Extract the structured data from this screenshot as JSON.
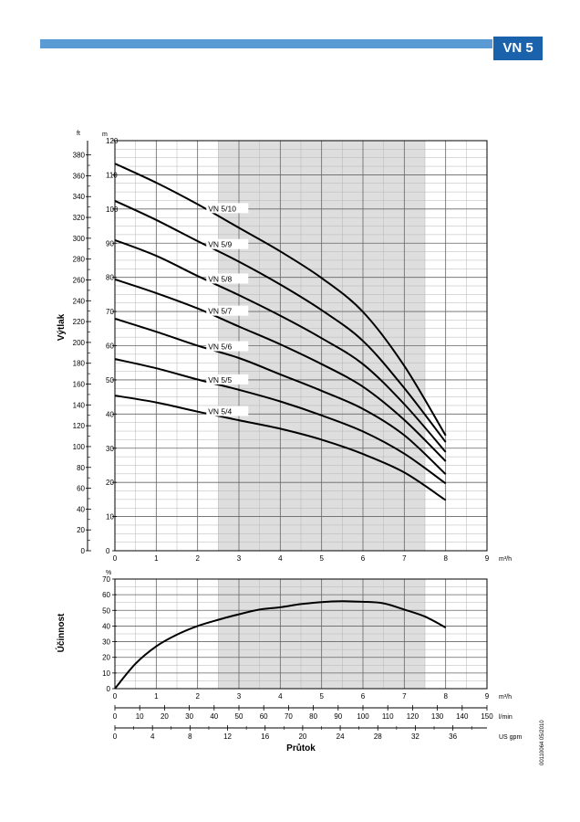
{
  "header": {
    "badge": "VN 5"
  },
  "footer_code": "00110064  05/2010",
  "colors": {
    "bar": "#5b9bd5",
    "badge": "#1b62ad",
    "shade": "#dedede",
    "curve": "#000000"
  },
  "chart_data": [
    {
      "type": "line",
      "ylabel": "Výtlak",
      "y_unit_m": "m",
      "y_unit_ft": "ft",
      "x_unit": "m³/h",
      "xlim": [
        0,
        9
      ],
      "ylim": [
        0,
        120
      ],
      "x_ticks": [
        0,
        1,
        2,
        3,
        4,
        5,
        6,
        7,
        8,
        9
      ],
      "y_ticks_m": [
        0,
        10,
        20,
        30,
        40,
        50,
        60,
        70,
        80,
        90,
        100,
        110,
        120
      ],
      "y_ticks_ft": [
        0,
        20,
        40,
        60,
        80,
        100,
        120,
        140,
        160,
        180,
        200,
        220,
        240,
        260,
        280,
        300,
        320,
        340,
        360,
        380
      ],
      "shaded_range": [
        2.5,
        7.5
      ],
      "grid": true,
      "series": [
        {
          "name": "VN 5/10",
          "x": [
            0,
            1,
            2,
            3,
            4,
            5,
            6,
            7,
            8
          ],
          "values": [
            113.3,
            107.7,
            101.4,
            94.5,
            87.6,
            79.8,
            69.9,
            54.1,
            33.7
          ],
          "label_x": 2.3
        },
        {
          "name": "VN 5/9",
          "x": [
            0,
            1,
            2,
            3,
            4,
            5,
            6,
            7,
            8
          ],
          "values": [
            102.4,
            96.8,
            90.6,
            84.6,
            77.9,
            70.4,
            61.4,
            47.6,
            31.8
          ],
          "label_x": 2.3
        },
        {
          "name": "VN 5/8",
          "x": [
            0,
            1,
            2,
            3,
            4,
            5,
            6,
            7,
            8
          ],
          "values": [
            90.9,
            86.3,
            80.4,
            74.8,
            68.8,
            62.2,
            54.6,
            42.9,
            28.9
          ],
          "label_x": 2.3
        },
        {
          "name": "VN 5/7",
          "x": [
            0,
            1,
            2,
            3,
            4,
            5,
            6,
            7,
            8
          ],
          "values": [
            79.4,
            75.4,
            70.9,
            65.6,
            60.4,
            54.6,
            48.0,
            38.3,
            26.2
          ],
          "label_x": 2.3
        },
        {
          "name": "VN 5/6",
          "x": [
            0,
            1,
            2,
            3,
            4,
            5,
            6,
            7,
            8
          ],
          "values": [
            67.9,
            64.1,
            60.0,
            56.4,
            51.6,
            46.8,
            41.5,
            33.8,
            22.4
          ],
          "label_x": 2.3
        },
        {
          "name": "VN 5/5",
          "x": [
            0,
            1,
            2,
            3,
            4,
            5,
            6,
            7,
            8
          ],
          "values": [
            56.1,
            53.4,
            50.1,
            47.1,
            43.7,
            39.6,
            34.9,
            28.4,
            19.7
          ],
          "label_x": 2.3
        },
        {
          "name": "VN 5/4",
          "x": [
            0,
            1,
            2,
            3,
            4,
            5,
            6,
            7,
            8
          ],
          "values": [
            45.4,
            43.4,
            40.7,
            38.2,
            35.7,
            32.5,
            28.3,
            22.9,
            14.8
          ],
          "label_x": 2.3
        }
      ]
    },
    {
      "type": "line",
      "ylabel": "Účinnost",
      "y_unit": "%",
      "xlabel": "Průtok",
      "x_unit": "m³/h",
      "xlim": [
        0,
        9
      ],
      "ylim": [
        0,
        70
      ],
      "x_ticks": [
        0,
        1,
        2,
        3,
        4,
        5,
        6,
        7,
        8,
        9
      ],
      "y_ticks": [
        0,
        10,
        20,
        30,
        40,
        50,
        60,
        70
      ],
      "shaded_range": [
        2.5,
        7.5
      ],
      "grid": true,
      "series": [
        {
          "x": [
            0,
            0.5,
            1,
            1.5,
            2,
            2.5,
            3,
            3.5,
            4,
            4.5,
            5,
            5.5,
            6,
            6.5,
            7,
            7.5,
            8
          ],
          "values": [
            0,
            16,
            27,
            34.5,
            40,
            44,
            47.5,
            50.5,
            52,
            54,
            55.3,
            55.8,
            55.5,
            54.5,
            50.5,
            46,
            39
          ]
        }
      ],
      "secondary_axes": [
        {
          "unit": "l/min",
          "max": 150,
          "ticks": [
            0,
            10,
            20,
            30,
            40,
            50,
            60,
            70,
            80,
            90,
            100,
            110,
            120,
            130,
            140,
            150
          ]
        },
        {
          "unit": "US gpm",
          "max": 39.63,
          "ticks": [
            0,
            4,
            8,
            12,
            16,
            20,
            24,
            28,
            32,
            36
          ]
        }
      ]
    }
  ]
}
